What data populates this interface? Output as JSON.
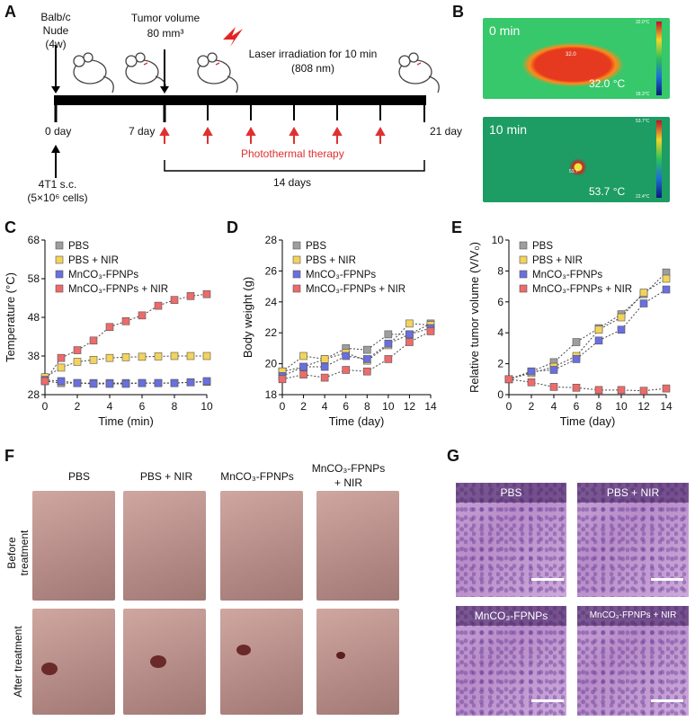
{
  "panels": {
    "A": "A",
    "B": "B",
    "C": "C",
    "D": "D",
    "E": "E",
    "F": "F",
    "G": "G"
  },
  "timeline": {
    "mouse_label": "Balb/c\nNude\n(4w)",
    "tumor_label": "Tumor  volume\n80 mm³",
    "laser_label": "Laser irradiation for 10 min\n(808 nm)",
    "day0": "0 day",
    "day7": "7 day",
    "day21": "21 day",
    "therapy": "Photothermal therapy",
    "injection": "4T1 s.c.\n(5×10⁶ cells)",
    "span": "14 days"
  },
  "thermal": {
    "top_time": "0 min",
    "top_temp": "32.0 °C",
    "top_spot": "32.0",
    "top_scale_max": "32.0°C",
    "top_scale_min": "18.3°C",
    "bottom_time": "10 min",
    "bottom_temp": "53.7 °C",
    "bottom_spot": "53.7",
    "bottom_scale_max": "53.7°C",
    "bottom_scale_min": "22.4°C"
  },
  "legend": [
    "PBS",
    "PBS + NIR",
    "MnCO₃-FPNPs",
    "MnCO₃-FPNPs + NIR"
  ],
  "colors": {
    "PBS": "#9e9e9e",
    "PBS_NIR": "#f3d35c",
    "Mn": "#6a6fe0",
    "Mn_NIR": "#ec6b6b"
  },
  "chart_data": [
    {
      "type": "line",
      "title": "",
      "xlabel": "Time (min)",
      "ylabel": "Temperature (°C)",
      "x": [
        0,
        1,
        2,
        3,
        4,
        5,
        6,
        7,
        8,
        9,
        10
      ],
      "xlim": [
        0,
        10
      ],
      "ylim": [
        28,
        68
      ],
      "xticks": [
        "0",
        "2",
        "4",
        "6",
        "8",
        "10"
      ],
      "yticks": [
        "28",
        "38",
        "48",
        "58",
        "68"
      ],
      "series": [
        {
          "name": "PBS",
          "values": [
            31.5,
            31,
            31,
            31,
            31,
            31,
            31,
            31,
            31,
            31.2,
            31.3
          ]
        },
        {
          "name": "PBS + NIR",
          "values": [
            32.5,
            35,
            36.5,
            37,
            37.5,
            37.7,
            37.8,
            37.9,
            38,
            38,
            38
          ]
        },
        {
          "name": "MnCO₃-FPNPs",
          "values": [
            31.8,
            31.5,
            31,
            30.8,
            30.8,
            30.8,
            31,
            31,
            31,
            31.2,
            31.5
          ]
        },
        {
          "name": "MnCO₃-FPNPs + NIR",
          "values": [
            31.5,
            37.5,
            39.5,
            42,
            45.5,
            47,
            48.5,
            51,
            52.5,
            53.5,
            54
          ]
        }
      ]
    },
    {
      "type": "line",
      "xlabel": "Time (day)",
      "ylabel": "Body weight (g)",
      "x": [
        0,
        2,
        4,
        6,
        8,
        10,
        12,
        14
      ],
      "xlim": [
        0,
        14
      ],
      "ylim": [
        18,
        28
      ],
      "xticks": [
        "0",
        "2",
        "4",
        "6",
        "8",
        "10",
        "12",
        "14"
      ],
      "yticks": [
        "18",
        "20",
        "22",
        "24",
        "26",
        "28"
      ],
      "series": [
        {
          "name": "PBS",
          "values": [
            19.5,
            19.8,
            20.3,
            21,
            20.9,
            21.9,
            21.9,
            22.6
          ]
        },
        {
          "name": "PBS + NIR",
          "values": [
            19.5,
            20.5,
            20.3,
            20.7,
            20.2,
            21.2,
            22.6,
            22.5
          ]
        },
        {
          "name": "MnCO₃-FPNPs",
          "values": [
            19.2,
            19.8,
            19.8,
            20.5,
            20.3,
            21.3,
            21.9,
            22.3
          ]
        },
        {
          "name": "MnCO₃-FPNPs + NIR",
          "values": [
            19,
            19.3,
            19.1,
            19.6,
            19.5,
            20.3,
            21.4,
            22.1
          ]
        }
      ]
    },
    {
      "type": "line",
      "xlabel": "Time (day)",
      "ylabel": "Relative tumor volume (V/V₀)",
      "x": [
        0,
        2,
        4,
        6,
        8,
        10,
        12,
        14
      ],
      "xlim": [
        0,
        14
      ],
      "ylim": [
        0,
        10
      ],
      "xticks": [
        "0",
        "2",
        "4",
        "6",
        "8",
        "10",
        "12",
        "14"
      ],
      "yticks": [
        "0",
        "2",
        "4",
        "6",
        "8",
        "10"
      ],
      "series": [
        {
          "name": "PBS",
          "values": [
            1,
            1.5,
            2.1,
            3.4,
            4.3,
            5.2,
            6.5,
            7.9
          ]
        },
        {
          "name": "PBS + NIR",
          "values": [
            1,
            1.4,
            1.8,
            2.5,
            4.2,
            5,
            6.6,
            7.5
          ]
        },
        {
          "name": "MnCO₃-FPNPs",
          "values": [
            1,
            1.5,
            1.6,
            2.3,
            3.5,
            4.2,
            5.9,
            6.8
          ]
        },
        {
          "name": "MnCO₃-FPNPs + NIR",
          "values": [
            1,
            0.8,
            0.5,
            0.45,
            0.3,
            0.3,
            0.25,
            0.4
          ]
        }
      ]
    }
  ],
  "photos": {
    "cols": [
      "PBS",
      "PBS + NIR",
      "MnCO₃-FPNPs",
      "MnCO₃-FPNPs\n+ NIR"
    ],
    "row_before": "Before treatment",
    "row_after": "After treatment"
  },
  "histology": [
    "PBS",
    "PBS  +  NIR",
    "MnCO₃-FPNPs",
    "MnCO₃-FPNPs  +  NIR"
  ]
}
